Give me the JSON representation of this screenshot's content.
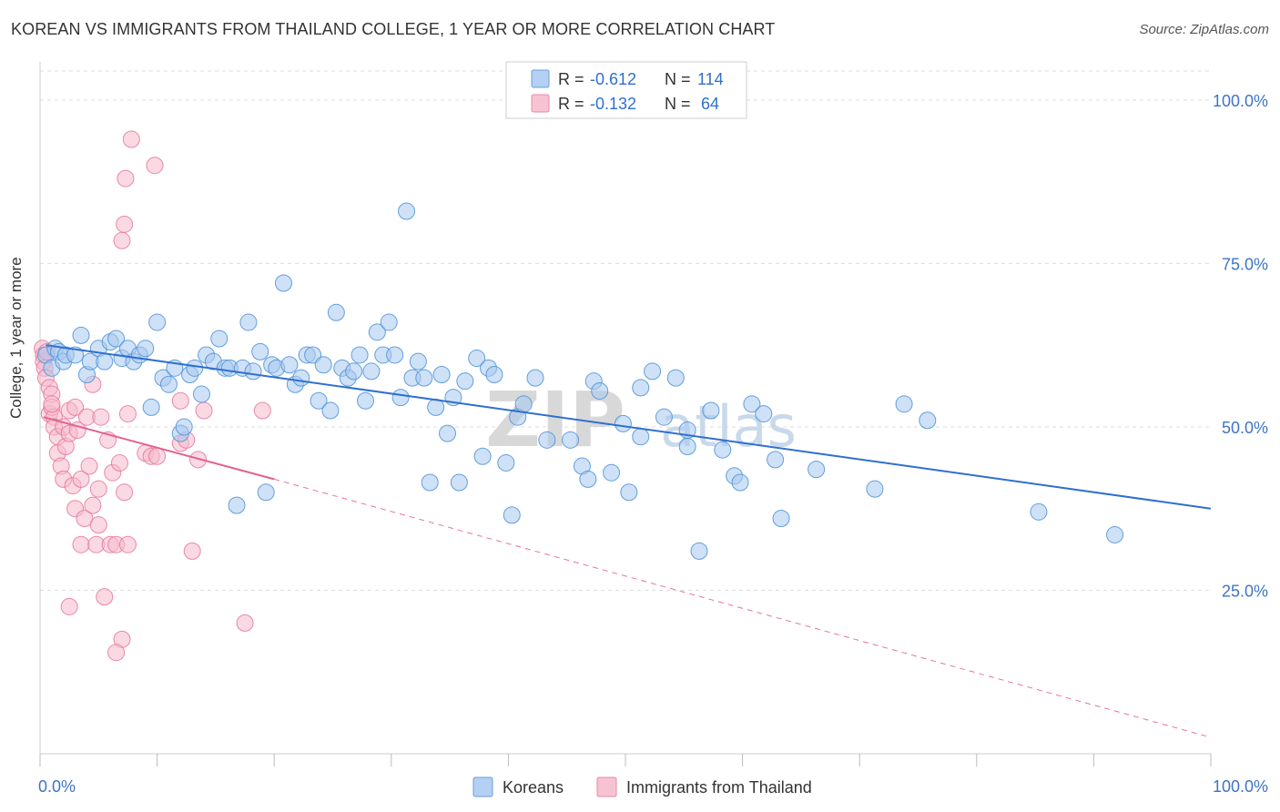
{
  "title": "KOREAN VS IMMIGRANTS FROM THAILAND COLLEGE, 1 YEAR OR MORE CORRELATION CHART",
  "source": "Source: ZipAtlas.com",
  "watermark": {
    "zip": "ZIP",
    "atlas": "atlas"
  },
  "legend_stats": [
    {
      "r_label": "R =",
      "r_value": "-0.612",
      "n_label": "N =",
      "n_value": "114"
    },
    {
      "r_label": "R =",
      "r_value": "-0.132",
      "n_label": "N =",
      "n_value": "64"
    }
  ],
  "chart_data": {
    "type": "scatter",
    "ylabel": "College, 1 year or more",
    "xlim": [
      0,
      100
    ],
    "ylim": [
      0,
      105
    ],
    "x_tick_labels": [
      "0.0%",
      "100.0%"
    ],
    "y_ticks": [
      25,
      50,
      75,
      100
    ],
    "y_tick_labels": [
      "25.0%",
      "50.0%",
      "75.0%",
      "100.0%"
    ],
    "grid": true,
    "legend": "bottom-center",
    "series": [
      {
        "name": "Koreans",
        "color": "#4a90d9",
        "fill": "#a8c8ee",
        "trend": {
          "x": [
            0.5,
            100
          ],
          "y": [
            62.5,
            37.5
          ]
        },
        "points": [
          [
            0.5,
            61
          ],
          [
            1.0,
            59
          ],
          [
            1.3,
            62
          ],
          [
            1.6,
            61.5
          ],
          [
            2.0,
            60
          ],
          [
            2.2,
            61
          ],
          [
            3.0,
            61
          ],
          [
            3.5,
            64
          ],
          [
            4.0,
            58
          ],
          [
            4.3,
            60
          ],
          [
            5.0,
            62
          ],
          [
            5.5,
            60
          ],
          [
            6.0,
            63
          ],
          [
            6.5,
            63.5
          ],
          [
            7.0,
            60.5
          ],
          [
            7.5,
            62
          ],
          [
            8.0,
            60
          ],
          [
            8.5,
            61
          ],
          [
            9.0,
            62
          ],
          [
            9.5,
            53
          ],
          [
            10.0,
            66
          ],
          [
            10.5,
            57.5
          ],
          [
            11.0,
            56.5
          ],
          [
            11.5,
            59
          ],
          [
            12.0,
            49
          ],
          [
            12.3,
            50
          ],
          [
            12.8,
            58
          ],
          [
            13.2,
            59
          ],
          [
            13.8,
            55
          ],
          [
            14.2,
            61
          ],
          [
            14.8,
            60
          ],
          [
            15.3,
            63.5
          ],
          [
            15.8,
            59
          ],
          [
            16.2,
            59
          ],
          [
            16.8,
            38
          ],
          [
            17.3,
            59
          ],
          [
            17.8,
            66
          ],
          [
            18.2,
            58.5
          ],
          [
            18.8,
            61.5
          ],
          [
            19.3,
            40
          ],
          [
            19.8,
            59.5
          ],
          [
            20.2,
            59
          ],
          [
            20.8,
            72
          ],
          [
            21.3,
            59.5
          ],
          [
            21.8,
            56.5
          ],
          [
            22.3,
            57.5
          ],
          [
            22.8,
            61
          ],
          [
            23.3,
            61
          ],
          [
            23.8,
            54
          ],
          [
            24.2,
            59.5
          ],
          [
            24.8,
            52.5
          ],
          [
            25.3,
            67.5
          ],
          [
            25.8,
            59
          ],
          [
            26.3,
            57.5
          ],
          [
            26.8,
            58.5
          ],
          [
            27.3,
            61
          ],
          [
            27.8,
            54
          ],
          [
            28.3,
            58.5
          ],
          [
            28.8,
            64.5
          ],
          [
            29.3,
            61
          ],
          [
            29.8,
            66
          ],
          [
            30.3,
            61
          ],
          [
            30.8,
            54.5
          ],
          [
            31.3,
            83
          ],
          [
            31.8,
            57.5
          ],
          [
            32.3,
            60
          ],
          [
            32.8,
            57.5
          ],
          [
            33.3,
            41.5
          ],
          [
            33.8,
            53
          ],
          [
            34.3,
            58
          ],
          [
            34.8,
            49
          ],
          [
            35.3,
            54.5
          ],
          [
            35.8,
            41.5
          ],
          [
            36.3,
            57
          ],
          [
            37.3,
            60.5
          ],
          [
            37.8,
            45.5
          ],
          [
            38.3,
            59
          ],
          [
            38.8,
            58
          ],
          [
            39.8,
            44.5
          ],
          [
            40.3,
            36.5
          ],
          [
            40.8,
            51.5
          ],
          [
            41.3,
            53.5
          ],
          [
            42.3,
            57.5
          ],
          [
            43.3,
            48
          ],
          [
            45.3,
            48
          ],
          [
            46.3,
            44
          ],
          [
            46.8,
            42
          ],
          [
            47.3,
            57
          ],
          [
            47.8,
            55.5
          ],
          [
            48.8,
            43
          ],
          [
            49.8,
            50.5
          ],
          [
            50.3,
            40
          ],
          [
            51.3,
            56
          ],
          [
            51.3,
            48.5
          ],
          [
            52.3,
            58.5
          ],
          [
            53.3,
            51.5
          ],
          [
            54.3,
            57.5
          ],
          [
            55.3,
            49.5
          ],
          [
            55.3,
            47
          ],
          [
            56.3,
            31
          ],
          [
            57.3,
            52.5
          ],
          [
            58.3,
            46.5
          ],
          [
            59.3,
            42.5
          ],
          [
            59.8,
            41.5
          ],
          [
            60.8,
            53.5
          ],
          [
            61.8,
            52
          ],
          [
            62.8,
            45
          ],
          [
            63.3,
            36
          ],
          [
            66.3,
            43.5
          ],
          [
            71.3,
            40.5
          ],
          [
            73.8,
            53.5
          ],
          [
            75.8,
            51
          ],
          [
            85.3,
            37
          ],
          [
            91.8,
            33.5
          ]
        ]
      },
      {
        "name": "Immigrants from Thailand",
        "color": "#e8749b",
        "fill": "#f5b9cc",
        "trend": {
          "x": [
            0.3,
            20
          ],
          "y": [
            51.5,
            42
          ],
          "dash_to": [
            100,
            2.5
          ]
        },
        "points": [
          [
            0.2,
            62
          ],
          [
            0.3,
            61
          ],
          [
            0.3,
            60
          ],
          [
            0.4,
            59
          ],
          [
            0.5,
            57.5
          ],
          [
            0.8,
            56
          ],
          [
            0.8,
            52
          ],
          [
            1.0,
            55
          ],
          [
            1.0,
            53
          ],
          [
            1.2,
            51.5
          ],
          [
            1.2,
            50
          ],
          [
            1.5,
            48.5
          ],
          [
            1.5,
            46
          ],
          [
            1.8,
            44
          ],
          [
            2.0,
            42
          ],
          [
            2.0,
            50
          ],
          [
            2.2,
            47
          ],
          [
            2.5,
            52.5
          ],
          [
            2.5,
            49
          ],
          [
            2.8,
            41
          ],
          [
            3.0,
            37.5
          ],
          [
            3.0,
            53
          ],
          [
            3.2,
            49.5
          ],
          [
            3.5,
            42
          ],
          [
            3.5,
            32
          ],
          [
            3.8,
            36
          ],
          [
            4.0,
            51.5
          ],
          [
            4.2,
            44
          ],
          [
            4.5,
            38
          ],
          [
            4.5,
            56.5
          ],
          [
            4.8,
            32
          ],
          [
            5.0,
            35
          ],
          [
            5.0,
            40.5
          ],
          [
            5.2,
            51.5
          ],
          [
            5.5,
            24
          ],
          [
            5.8,
            48
          ],
          [
            6.0,
            32
          ],
          [
            6.2,
            43
          ],
          [
            6.5,
            32
          ],
          [
            6.8,
            44.5
          ],
          [
            7.0,
            17.5
          ],
          [
            7.2,
            40
          ],
          [
            7.5,
            32
          ],
          [
            7.5,
            52
          ],
          [
            7.0,
            78.5
          ],
          [
            7.3,
            88
          ],
          [
            7.2,
            81
          ],
          [
            7.8,
            94
          ],
          [
            9.0,
            46
          ],
          [
            9.5,
            45.5
          ],
          [
            9.8,
            90
          ],
          [
            10.0,
            45.5
          ],
          [
            12.0,
            47.5
          ],
          [
            12.0,
            54
          ],
          [
            12.5,
            48
          ],
          [
            13.0,
            31
          ],
          [
            13.5,
            45
          ],
          [
            14.0,
            52.5
          ],
          [
            17.5,
            20
          ],
          [
            19.0,
            52.5
          ],
          [
            6.5,
            15.5
          ],
          [
            2.5,
            22.5
          ],
          [
            1.0,
            53.5
          ],
          [
            0.6,
            61.5
          ]
        ]
      }
    ]
  }
}
